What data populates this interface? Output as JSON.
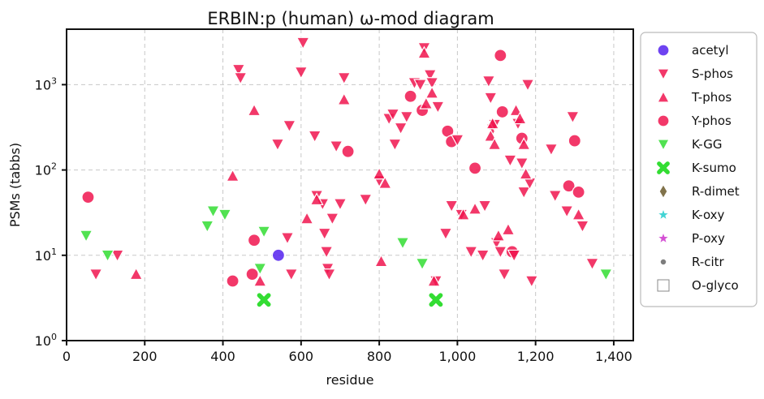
{
  "chart_data": {
    "type": "scatter",
    "title": "ERBIN:p (human) ω-mod diagram",
    "xlabel": "residue",
    "ylabel": "PSMs (tabbs)",
    "xlim": [
      0,
      1450
    ],
    "ylim_log10": [
      0,
      3.65
    ],
    "yscale": "log",
    "grid": true,
    "legend_position": "right",
    "x_ticks": [
      {
        "value": 0,
        "label": "0"
      },
      {
        "value": 200,
        "label": "200"
      },
      {
        "value": 400,
        "label": "400"
      },
      {
        "value": 600,
        "label": "600"
      },
      {
        "value": 800,
        "label": "800"
      },
      {
        "value": 1000,
        "label": "1,000"
      },
      {
        "value": 1200,
        "label": "1,200"
      },
      {
        "value": 1400,
        "label": "1,400"
      }
    ],
    "y_ticks": [
      {
        "value": 1,
        "base": "10",
        "exp": "0"
      },
      {
        "value": 10,
        "base": "10",
        "exp": "1"
      },
      {
        "value": 100,
        "base": "10",
        "exp": "2"
      },
      {
        "value": 1000,
        "base": "10",
        "exp": "3"
      }
    ],
    "series": [
      {
        "name": "acetyl",
        "marker": "circle",
        "color": "#5522ee",
        "points": [
          [
            542,
            10
          ]
        ]
      },
      {
        "name": "S-phos",
        "marker": "triangle-down",
        "color": "#f0154f",
        "points": [
          [
            75,
            6
          ],
          [
            130,
            10
          ],
          [
            440,
            1500
          ],
          [
            445,
            1200
          ],
          [
            540,
            200
          ],
          [
            565,
            16
          ],
          [
            570,
            330
          ],
          [
            575,
            6
          ],
          [
            600,
            1400
          ],
          [
            605,
            3100
          ],
          [
            635,
            250
          ],
          [
            640,
            50
          ],
          [
            655,
            40
          ],
          [
            660,
            18
          ],
          [
            665,
            11
          ],
          [
            668,
            7
          ],
          [
            672,
            6
          ],
          [
            680,
            27
          ],
          [
            690,
            190
          ],
          [
            700,
            40
          ],
          [
            710,
            1200
          ],
          [
            765,
            45
          ],
          [
            800,
            75
          ],
          [
            825,
            400
          ],
          [
            835,
            450
          ],
          [
            840,
            200
          ],
          [
            855,
            310
          ],
          [
            870,
            420
          ],
          [
            890,
            1050
          ],
          [
            905,
            1000
          ],
          [
            915,
            2700
          ],
          [
            930,
            1300
          ],
          [
            935,
            1050
          ],
          [
            945,
            5
          ],
          [
            950,
            550
          ],
          [
            970,
            18
          ],
          [
            985,
            38
          ],
          [
            1000,
            225
          ],
          [
            1010,
            30
          ],
          [
            1035,
            11
          ],
          [
            1065,
            10
          ],
          [
            1070,
            38
          ],
          [
            1080,
            1100
          ],
          [
            1085,
            700
          ],
          [
            1090,
            300
          ],
          [
            1095,
            340
          ],
          [
            1100,
            14
          ],
          [
            1110,
            11
          ],
          [
            1120,
            6
          ],
          [
            1135,
            130
          ],
          [
            1145,
            10
          ],
          [
            1155,
            350
          ],
          [
            1165,
            120
          ],
          [
            1170,
            55
          ],
          [
            1180,
            1000
          ],
          [
            1185,
            70
          ],
          [
            1190,
            5
          ],
          [
            1240,
            175
          ],
          [
            1250,
            50
          ],
          [
            1280,
            33
          ],
          [
            1295,
            420
          ],
          [
            1320,
            22
          ],
          [
            1345,
            8
          ]
        ]
      },
      {
        "name": "T-phos",
        "marker": "triangle-up",
        "color": "#f0154f",
        "points": [
          [
            178,
            6
          ],
          [
            425,
            85
          ],
          [
            480,
            500
          ],
          [
            495,
            5
          ],
          [
            615,
            27
          ],
          [
            640,
            45
          ],
          [
            710,
            670
          ],
          [
            800,
            90
          ],
          [
            805,
            8.5
          ],
          [
            815,
            70
          ],
          [
            915,
            2350
          ],
          [
            920,
            600
          ],
          [
            935,
            800
          ],
          [
            940,
            5
          ],
          [
            1015,
            30
          ],
          [
            1045,
            35
          ],
          [
            1085,
            250
          ],
          [
            1090,
            350
          ],
          [
            1095,
            200
          ],
          [
            1105,
            17
          ],
          [
            1130,
            20
          ],
          [
            1150,
            500
          ],
          [
            1160,
            400
          ],
          [
            1170,
            200
          ],
          [
            1175,
            90
          ],
          [
            1310,
            30
          ]
        ]
      },
      {
        "name": "Y-phos",
        "marker": "circle",
        "color": "#f0154f",
        "points": [
          [
            55,
            48
          ],
          [
            425,
            5
          ],
          [
            475,
            6
          ],
          [
            480,
            15
          ],
          [
            720,
            165
          ],
          [
            880,
            730
          ],
          [
            910,
            500
          ],
          [
            975,
            285
          ],
          [
            985,
            215
          ],
          [
            1045,
            105
          ],
          [
            1110,
            2200
          ],
          [
            1115,
            480
          ],
          [
            1140,
            11
          ],
          [
            1165,
            235
          ],
          [
            1285,
            65
          ],
          [
            1300,
            220
          ],
          [
            1310,
            55
          ]
        ]
      },
      {
        "name": "K-GG",
        "marker": "triangle-down",
        "color": "#33dd33",
        "points": [
          [
            50,
            17
          ],
          [
            105,
            10
          ],
          [
            360,
            22
          ],
          [
            375,
            33
          ],
          [
            405,
            30
          ],
          [
            495,
            7
          ],
          [
            505,
            19
          ],
          [
            860,
            14
          ],
          [
            910,
            8
          ],
          [
            1380,
            6
          ]
        ]
      },
      {
        "name": "K-sumo",
        "marker": "x",
        "color": "#33dd33",
        "points": [
          [
            505,
            3
          ],
          [
            945,
            3
          ]
        ]
      },
      {
        "name": "R-dimet",
        "marker": "diamond",
        "color": "#6b5a2c",
        "points": []
      },
      {
        "name": "K-oxy",
        "marker": "star",
        "color": "#22cccc",
        "points": []
      },
      {
        "name": "P-oxy",
        "marker": "star",
        "color": "#cc33cc",
        "points": []
      },
      {
        "name": "R-citr",
        "marker": "small-circle",
        "color": "#666666",
        "points": []
      },
      {
        "name": "O-glyco",
        "marker": "square",
        "color": "#ffffff",
        "points": []
      }
    ]
  }
}
